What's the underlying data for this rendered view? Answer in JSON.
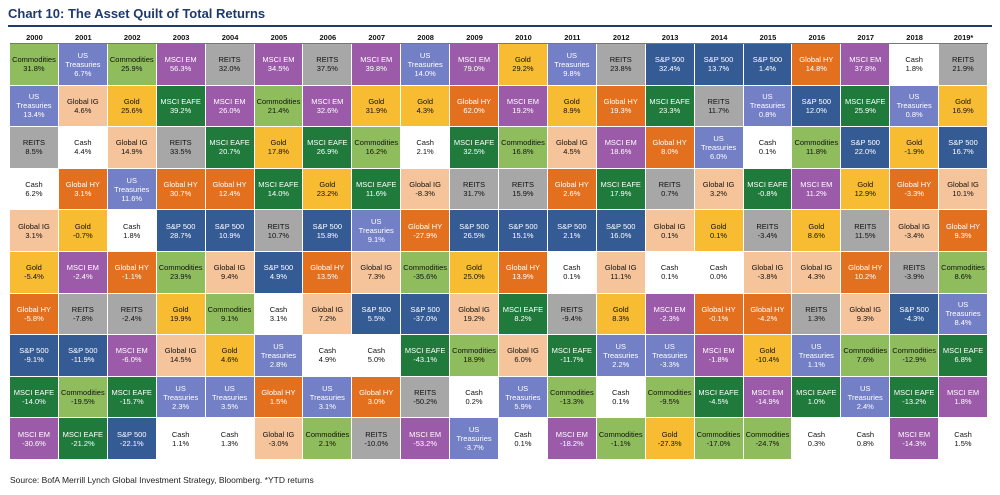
{
  "title": "Chart 10: The Asset Quilt of Total Returns",
  "source": "Source: BofA Merrill Lynch Global Investment Strategy, Bloomberg. *YTD returns",
  "colors": {
    "Commodities": "#8fbd5d",
    "US Treasuries": "#7480c5",
    "REITS": "#a7a7a7",
    "MSCI EM": "#9b5ba8",
    "Gold": "#f7bc32",
    "Global IG": "#f6c49a",
    "Cash": "#ffffff",
    "Global HY": "#e3701f",
    "MSCI EAFE": "#1f7a3c",
    "S&P 500": "#355b95"
  },
  "chart_data": {
    "type": "table",
    "title": "Chart 10: The Asset Quilt of Total Returns",
    "years": [
      "2000",
      "2001",
      "2002",
      "2003",
      "2004",
      "2005",
      "2006",
      "2007",
      "2008",
      "2009",
      "2010",
      "2011",
      "2012",
      "2013",
      "2014",
      "2015",
      "2016",
      "2017",
      "2018",
      "2019*"
    ],
    "columns": [
      [
        [
          "Commodities",
          "31.8%"
        ],
        [
          "US Treasuries",
          "13.4%"
        ],
        [
          "REITS",
          "8.5%"
        ],
        [
          "Cash",
          "6.2%"
        ],
        [
          "Global IG",
          "3.1%"
        ],
        [
          "Gold",
          "-5.4%"
        ],
        [
          "Global HY",
          "-5.8%"
        ],
        [
          "S&P 500",
          "-9.1%"
        ],
        [
          "MSCI EAFE",
          "-14.0%"
        ],
        [
          "MSCI EM",
          "-30.6%"
        ]
      ],
      [
        [
          "US Treasuries",
          "6.7%"
        ],
        [
          "Global IG",
          "4.6%"
        ],
        [
          "Cash",
          "4.4%"
        ],
        [
          "Global HY",
          "3.1%"
        ],
        [
          "Gold",
          "-0.7%"
        ],
        [
          "MSCI EM",
          "-2.4%"
        ],
        [
          "REITS",
          "-7.8%"
        ],
        [
          "S&P 500",
          "-11.9%"
        ],
        [
          "Commodities",
          "-19.5%"
        ],
        [
          "MSCI EAFE",
          "-21.2%"
        ]
      ],
      [
        [
          "Commodities",
          "25.9%"
        ],
        [
          "Gold",
          "25.6%"
        ],
        [
          "Global IG",
          "14.9%"
        ],
        [
          "US Treasuries",
          "11.6%"
        ],
        [
          "Cash",
          "1.8%"
        ],
        [
          "Global HY",
          "-1.1%"
        ],
        [
          "REITS",
          "-2.4%"
        ],
        [
          "MSCI EM",
          "-6.0%"
        ],
        [
          "MSCI EAFE",
          "-15.7%"
        ],
        [
          "S&P 500",
          "-22.1%"
        ]
      ],
      [
        [
          "MSCI EM",
          "56.3%"
        ],
        [
          "MSCI EAFE",
          "39.2%"
        ],
        [
          "REITS",
          "33.5%"
        ],
        [
          "Global HY",
          "30.7%"
        ],
        [
          "S&P 500",
          "28.7%"
        ],
        [
          "Commodities",
          "23.9%"
        ],
        [
          "Gold",
          "19.9%"
        ],
        [
          "Global IG",
          "14.5%"
        ],
        [
          "US Treasuries",
          "2.3%"
        ],
        [
          "Cash",
          "1.1%"
        ]
      ],
      [
        [
          "REITS",
          "32.0%"
        ],
        [
          "MSCI EM",
          "26.0%"
        ],
        [
          "MSCI EAFE",
          "20.7%"
        ],
        [
          "Global HY",
          "12.4%"
        ],
        [
          "S&P 500",
          "10.9%"
        ],
        [
          "Global IG",
          "9.4%"
        ],
        [
          "Commodities",
          "9.1%"
        ],
        [
          "Gold",
          "4.6%"
        ],
        [
          "US Treasuries",
          "3.5%"
        ],
        [
          "Cash",
          "1.3%"
        ]
      ],
      [
        [
          "MSCI EM",
          "34.5%"
        ],
        [
          "Commodities",
          "21.4%"
        ],
        [
          "Gold",
          "17.8%"
        ],
        [
          "MSCI EAFE",
          "14.0%"
        ],
        [
          "REITS",
          "10.7%"
        ],
        [
          "S&P 500",
          "4.9%"
        ],
        [
          "Cash",
          "3.1%"
        ],
        [
          "US Treasuries",
          "2.8%"
        ],
        [
          "Global HY",
          "1.5%"
        ],
        [
          "Global IG",
          "-3.0%"
        ]
      ],
      [
        [
          "REITS",
          "37.5%"
        ],
        [
          "MSCI EM",
          "32.6%"
        ],
        [
          "MSCI EAFE",
          "26.9%"
        ],
        [
          "Gold",
          "23.2%"
        ],
        [
          "S&P 500",
          "15.8%"
        ],
        [
          "Global HY",
          "13.5%"
        ],
        [
          "Global IG",
          "7.2%"
        ],
        [
          "Cash",
          "4.9%"
        ],
        [
          "US Treasuries",
          "3.1%"
        ],
        [
          "Commodities",
          "2.1%"
        ]
      ],
      [
        [
          "MSCI EM",
          "39.8%"
        ],
        [
          "Gold",
          "31.9%"
        ],
        [
          "Commodities",
          "16.2%"
        ],
        [
          "MSCI EAFE",
          "11.6%"
        ],
        [
          "US Treasuries",
          "9.1%"
        ],
        [
          "Global IG",
          "7.3%"
        ],
        [
          "S&P 500",
          "5.5%"
        ],
        [
          "Cash",
          "5.0%"
        ],
        [
          "Global HY",
          "3.0%"
        ],
        [
          "REITS",
          "-10.0%"
        ]
      ],
      [
        [
          "US Treasuries",
          "14.0%"
        ],
        [
          "Gold",
          "4.3%"
        ],
        [
          "Cash",
          "2.1%"
        ],
        [
          "Global IG",
          "-8.3%"
        ],
        [
          "Global HY",
          "-27.9%"
        ],
        [
          "Commodities",
          "-35.6%"
        ],
        [
          "S&P 500",
          "-37.0%"
        ],
        [
          "MSCI EAFE",
          "-43.1%"
        ],
        [
          "REITS",
          "-50.2%"
        ],
        [
          "MSCI EM",
          "-53.2%"
        ]
      ],
      [
        [
          "MSCI EM",
          "79.0%"
        ],
        [
          "Global HY",
          "62.0%"
        ],
        [
          "MSCI EAFE",
          "32.5%"
        ],
        [
          "REITS",
          "31.7%"
        ],
        [
          "S&P 500",
          "26.5%"
        ],
        [
          "Gold",
          "25.0%"
        ],
        [
          "Global IG",
          "19.2%"
        ],
        [
          "Commodities",
          "18.9%"
        ],
        [
          "Cash",
          "0.2%"
        ],
        [
          "US Treasuries",
          "-3.7%"
        ]
      ],
      [
        [
          "Gold",
          "29.2%"
        ],
        [
          "MSCI EM",
          "19.2%"
        ],
        [
          "Commodities",
          "16.8%"
        ],
        [
          "REITS",
          "15.9%"
        ],
        [
          "S&P 500",
          "15.1%"
        ],
        [
          "Global HY",
          "13.9%"
        ],
        [
          "MSCI EAFE",
          "8.2%"
        ],
        [
          "Global IG",
          "6.0%"
        ],
        [
          "US Treasuries",
          "5.9%"
        ],
        [
          "Cash",
          "0.1%"
        ]
      ],
      [
        [
          "US Treasuries",
          "9.8%"
        ],
        [
          "Gold",
          "8.9%"
        ],
        [
          "Global IG",
          "4.5%"
        ],
        [
          "Global HY",
          "2.6%"
        ],
        [
          "S&P 500",
          "2.1%"
        ],
        [
          "Cash",
          "0.1%"
        ],
        [
          "REITS",
          "-9.4%"
        ],
        [
          "MSCI EAFE",
          "-11.7%"
        ],
        [
          "Commodities",
          "-13.3%"
        ],
        [
          "MSCI EM",
          "-18.2%"
        ]
      ],
      [
        [
          "REITS",
          "23.8%"
        ],
        [
          "Global HY",
          "19.3%"
        ],
        [
          "MSCI EM",
          "18.6%"
        ],
        [
          "MSCI EAFE",
          "17.9%"
        ],
        [
          "S&P 500",
          "16.0%"
        ],
        [
          "Global IG",
          "11.1%"
        ],
        [
          "Gold",
          "8.3%"
        ],
        [
          "US Treasuries",
          "2.2%"
        ],
        [
          "Cash",
          "0.1%"
        ],
        [
          "Commodities",
          "-1.1%"
        ]
      ],
      [
        [
          "S&P 500",
          "32.4%"
        ],
        [
          "MSCI EAFE",
          "23.3%"
        ],
        [
          "Global HY",
          "8.0%"
        ],
        [
          "REITS",
          "0.7%"
        ],
        [
          "Global IG",
          "0.1%"
        ],
        [
          "Cash",
          "0.1%"
        ],
        [
          "MSCI EM",
          "-2.3%"
        ],
        [
          "US Treasuries",
          "-3.3%"
        ],
        [
          "Commodities",
          "-9.5%"
        ],
        [
          "Gold",
          "-27.3%"
        ]
      ],
      [
        [
          "S&P 500",
          "13.7%"
        ],
        [
          "REITS",
          "11.7%"
        ],
        [
          "US Treasuries",
          "6.0%"
        ],
        [
          "Global IG",
          "3.2%"
        ],
        [
          "Gold",
          "0.1%"
        ],
        [
          "Cash",
          "0.0%"
        ],
        [
          "Global HY",
          "-0.1%"
        ],
        [
          "MSCI EM",
          "-1.8%"
        ],
        [
          "MSCI EAFE",
          "-4.5%"
        ],
        [
          "Commodities",
          "-17.0%"
        ]
      ],
      [
        [
          "S&P 500",
          "1.4%"
        ],
        [
          "US Treasuries",
          "0.8%"
        ],
        [
          "Cash",
          "0.1%"
        ],
        [
          "MSCI EAFE",
          "-0.8%"
        ],
        [
          "REITS",
          "-3.4%"
        ],
        [
          "Global IG",
          "-3.8%"
        ],
        [
          "Global HY",
          "-4.2%"
        ],
        [
          "Gold",
          "-10.4%"
        ],
        [
          "MSCI EM",
          "-14.9%"
        ],
        [
          "Commodities",
          "-24.7%"
        ]
      ],
      [
        [
          "Global HY",
          "14.8%"
        ],
        [
          "S&P 500",
          "12.0%"
        ],
        [
          "Commodities",
          "11.8%"
        ],
        [
          "MSCI EM",
          "11.2%"
        ],
        [
          "Gold",
          "8.6%"
        ],
        [
          "Global IG",
          "4.3%"
        ],
        [
          "REITS",
          "1.3%"
        ],
        [
          "US Treasuries",
          "1.1%"
        ],
        [
          "MSCI EAFE",
          "1.0%"
        ],
        [
          "Cash",
          "0.3%"
        ]
      ],
      [
        [
          "MSCI EM",
          "37.8%"
        ],
        [
          "MSCI EAFE",
          "25.9%"
        ],
        [
          "S&P 500",
          "22.0%"
        ],
        [
          "Gold",
          "12.9%"
        ],
        [
          "REITS",
          "11.5%"
        ],
        [
          "Global HY",
          "10.2%"
        ],
        [
          "Global IG",
          "9.3%"
        ],
        [
          "Commodities",
          "7.6%"
        ],
        [
          "US Treasuries",
          "2.4%"
        ],
        [
          "Cash",
          "0.8%"
        ]
      ],
      [
        [
          "Cash",
          "1.8%"
        ],
        [
          "US Treasuries",
          "0.8%"
        ],
        [
          "Gold",
          "-1.9%"
        ],
        [
          "Global HY",
          "-3.3%"
        ],
        [
          "Global IG",
          "-3.4%"
        ],
        [
          "REITS",
          "-3.9%"
        ],
        [
          "S&P 500",
          "-4.3%"
        ],
        [
          "Commodities",
          "-12.9%"
        ],
        [
          "MSCI EAFE",
          "-13.2%"
        ],
        [
          "MSCI EM",
          "-14.3%"
        ]
      ],
      [
        [
          "REITS",
          "21.9%"
        ],
        [
          "Gold",
          "16.9%"
        ],
        [
          "S&P 500",
          "16.7%"
        ],
        [
          "Global IG",
          "10.1%"
        ],
        [
          "Global HY",
          "9.3%"
        ],
        [
          "Commodities",
          "8.6%"
        ],
        [
          "US Treasuries",
          "8.4%"
        ],
        [
          "MSCI EAFE",
          "6.8%"
        ],
        [
          "MSCI EM",
          "1.8%"
        ],
        [
          "Cash",
          "1.5%"
        ]
      ]
    ]
  }
}
